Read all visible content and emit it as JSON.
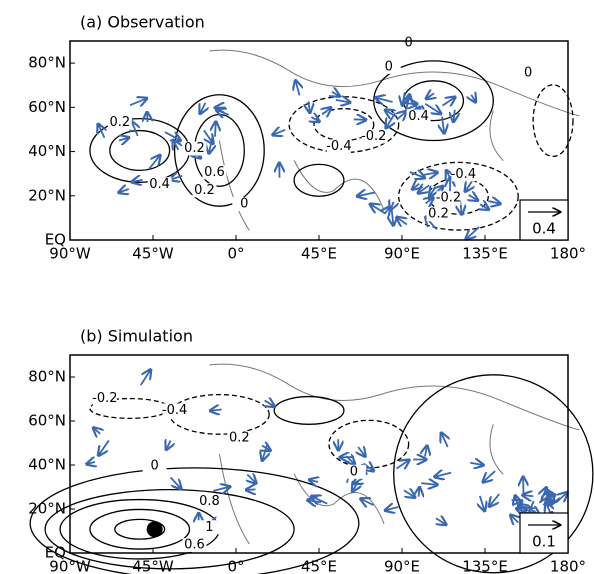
{
  "chart_data": [
    {
      "type": "vector-contour-map",
      "title": "(a)  Observation",
      "xlim": [
        -90,
        180
      ],
      "ylim": [
        0,
        90
      ],
      "xticks": [
        {
          "value": -90,
          "label": "90°W"
        },
        {
          "value": -45,
          "label": "45°W"
        },
        {
          "value": 0,
          "label": "0°"
        },
        {
          "value": 45,
          "label": "45°E"
        },
        {
          "value": 90,
          "label": "90°E"
        },
        {
          "value": 135,
          "label": "135°E"
        },
        {
          "value": 180,
          "label": "180°"
        }
      ],
      "yticks": [
        {
          "value": 0,
          "label": "EQ"
        },
        {
          "value": 20,
          "label": "20°N"
        },
        {
          "value": 40,
          "label": "40°N"
        },
        {
          "value": 60,
          "label": "60°N"
        },
        {
          "value": 80,
          "label": "80°N"
        }
      ],
      "contour_labels": [
        0,
        0,
        0,
        0.2,
        0.4,
        -0.2,
        -0.4,
        0.2,
        0.6,
        0.4,
        0.2,
        0,
        -0.4,
        -0.2,
        0.2
      ],
      "vector_color": "#3a68b0",
      "reference_vector": 0.4
    },
    {
      "type": "vector-contour-map",
      "title": "(b)  Simulation",
      "xlim": [
        -90,
        180
      ],
      "ylim": [
        0,
        90
      ],
      "xticks": [
        {
          "value": -90,
          "label": "90°W"
        },
        {
          "value": -45,
          "label": "45°W"
        },
        {
          "value": 0,
          "label": "0°"
        },
        {
          "value": 45,
          "label": "45°E"
        },
        {
          "value": 90,
          "label": "90°E"
        },
        {
          "value": 135,
          "label": "135°E"
        },
        {
          "value": 180,
          "label": "180°"
        }
      ],
      "yticks": [
        {
          "value": 0,
          "label": "EQ"
        },
        {
          "value": 20,
          "label": "20°N"
        },
        {
          "value": 40,
          "label": "40°N"
        },
        {
          "value": 60,
          "label": "60°N"
        },
        {
          "value": 80,
          "label": "80°N"
        }
      ],
      "contour_labels": [
        -0.2,
        -0.4,
        0.2,
        0,
        0,
        0.8,
        1,
        0.6
      ],
      "vector_color": "#3a68b0",
      "reference_vector": 0.1
    }
  ]
}
